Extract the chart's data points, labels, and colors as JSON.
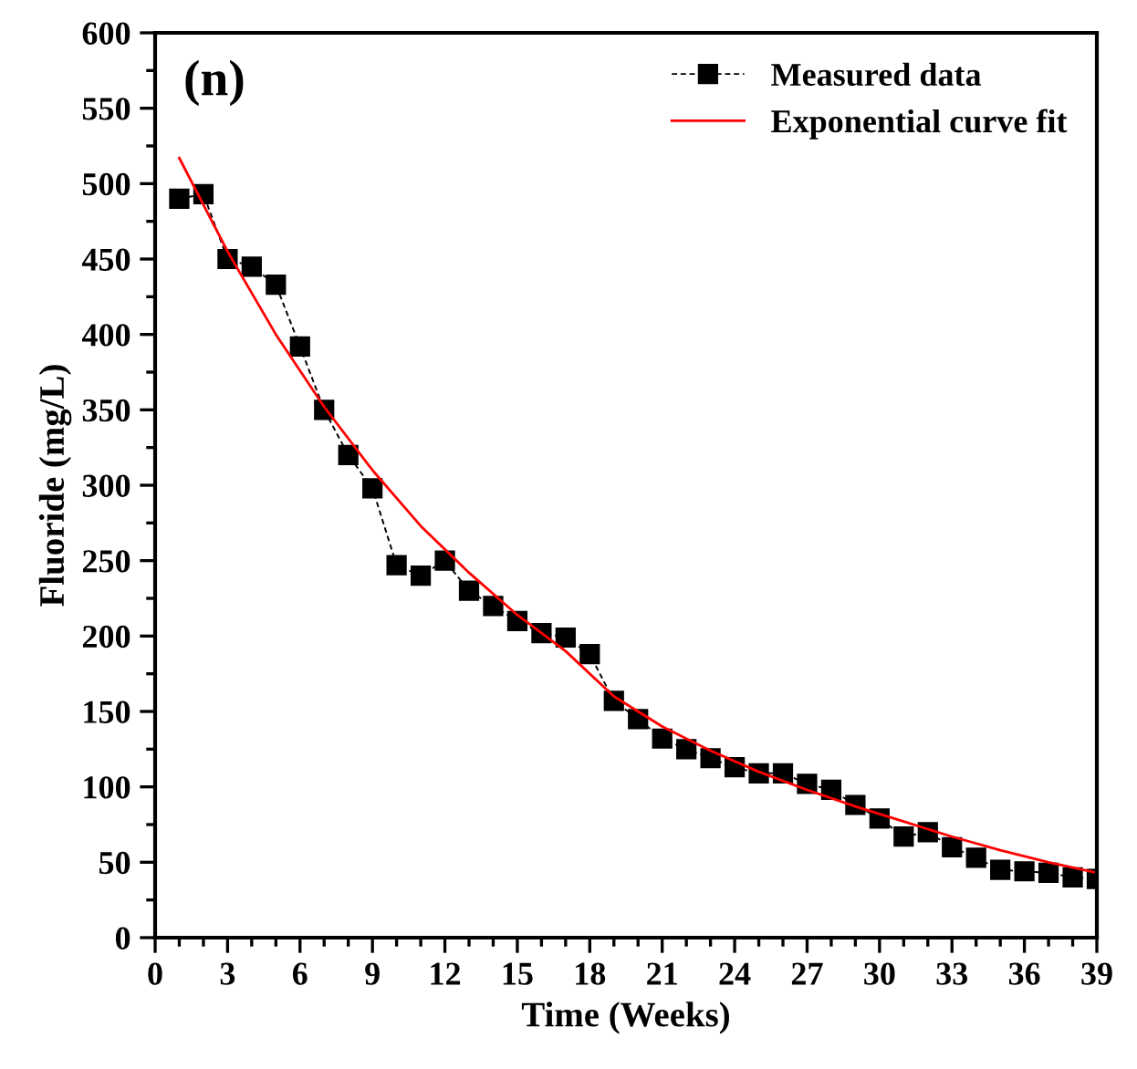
{
  "chart_data": {
    "type": "line",
    "xlabel": "Time (Weeks)",
    "ylabel": "Fluoride (mg/L)",
    "annotations": [
      "(n)"
    ],
    "xlim": [
      0,
      39
    ],
    "xticks": [
      0,
      3,
      6,
      9,
      12,
      15,
      18,
      21,
      24,
      27,
      30,
      33,
      36,
      39
    ],
    "ylim": [
      0,
      600
    ],
    "yticks": [
      0,
      50,
      100,
      150,
      200,
      250,
      300,
      350,
      400,
      450,
      500,
      550,
      600
    ],
    "legend": "top right",
    "grid": false,
    "series": [
      {
        "name": "Measured data",
        "color": "#000000",
        "marker": "square",
        "line_style": "dashed",
        "x": [
          1,
          2,
          3,
          4,
          5,
          6,
          7,
          8,
          9,
          10,
          11,
          12,
          13,
          14,
          15,
          16,
          17,
          18,
          19,
          20,
          21,
          22,
          23,
          24,
          25,
          26,
          27,
          28,
          29,
          30,
          31,
          32,
          33,
          34,
          35,
          36,
          37,
          38,
          39
        ],
        "values": [
          490,
          493,
          450,
          445,
          433,
          392,
          350,
          320,
          298,
          247,
          240,
          250,
          230,
          220,
          210,
          202,
          199,
          188,
          157,
          145,
          132,
          125,
          119,
          113,
          109,
          109,
          102,
          98,
          88,
          79,
          67,
          70,
          60,
          53,
          45,
          44,
          43,
          40,
          39
        ]
      },
      {
        "name": "Exponential curve fit",
        "color": "#ff0000",
        "marker": "none",
        "line_style": "solid",
        "x": [
          1,
          3,
          5,
          7,
          9,
          11,
          13,
          15,
          17,
          19,
          21,
          23,
          25,
          27,
          29,
          31,
          33,
          35,
          37,
          39
        ],
        "values": [
          517,
          455,
          400,
          352,
          310,
          273,
          242,
          214,
          190,
          160,
          140,
          124,
          110,
          98,
          87,
          77,
          67,
          58,
          50,
          43
        ]
      }
    ]
  }
}
